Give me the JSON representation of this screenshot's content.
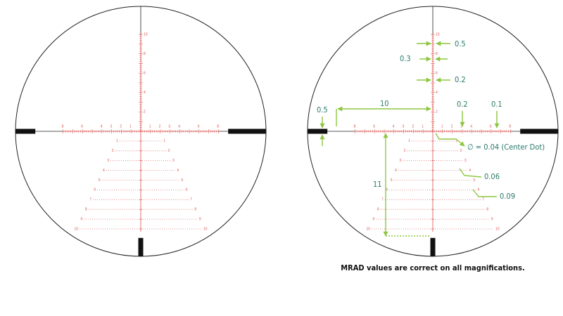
{
  "reticle": {
    "up_labels": [
      "2",
      "4",
      "6",
      "8",
      "10"
    ],
    "side_labels": [
      "8",
      "6",
      "4",
      "3",
      "2",
      "1"
    ],
    "tree_labels": [
      "1",
      "2",
      "3",
      "4",
      "5",
      "6",
      "7",
      "8",
      "9",
      "10"
    ]
  },
  "annotations": {
    "top_gap": "0.5",
    "line_width": "0.3",
    "tick_gap": "0.2",
    "post_distance": "10",
    "post_width": "0.5",
    "tick_height_major": "0.2",
    "tick_height_minor": "0.1",
    "center_dot": "∅ = 0.04 (Center Dot)",
    "dot_size_a": "0.06",
    "dot_size_b": "0.09",
    "post_drop": "11"
  },
  "caption": "MRAD values are correct on all magnifications."
}
